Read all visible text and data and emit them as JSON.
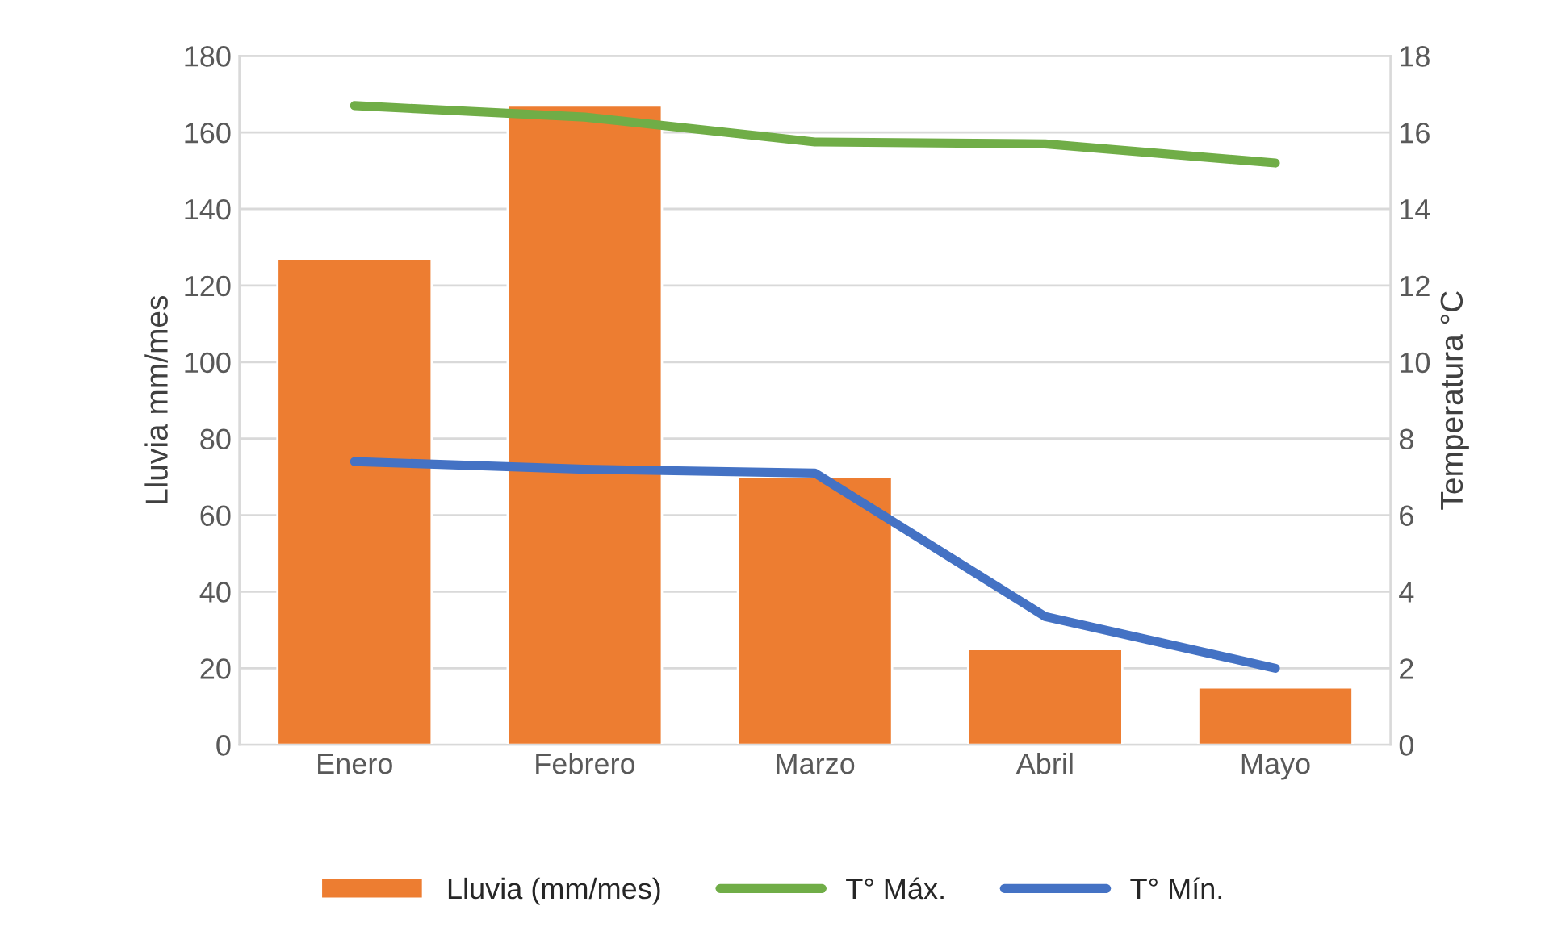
{
  "chart_data": {
    "type": "bar",
    "categories": [
      "Enero",
      "Febrero",
      "Marzo",
      "Abril",
      "Mayo"
    ],
    "series": [
      {
        "name": "Lluvia (mm/mes)",
        "color": "#ed7d31",
        "values": [
          127,
          167,
          70,
          25,
          15
        ]
      },
      {
        "name": "T° Máx.",
        "type": "line",
        "axis": "y2",
        "color": "#70ad47",
        "values": [
          16.7,
          16.4,
          15.75,
          15.7,
          15.2
        ]
      },
      {
        "name": "T° Mín.",
        "type": "line",
        "axis": "y2",
        "color": "#4472c4",
        "values": [
          7.4,
          7.2,
          7.1,
          3.35,
          2.0
        ]
      }
    ],
    "ylabel": "Lluvia mm/mes",
    "y2label": "Temperatura °C",
    "ylim": [
      0,
      180
    ],
    "yticks": [
      0,
      20,
      40,
      60,
      80,
      100,
      120,
      140,
      160,
      180
    ],
    "y2lim": [
      0,
      18
    ],
    "y2ticks": [
      0,
      2,
      4,
      6,
      8,
      10,
      12,
      14,
      16,
      18
    ],
    "grid": "y",
    "legend": "bottom",
    "marker": "none",
    "line_style": "solid"
  }
}
